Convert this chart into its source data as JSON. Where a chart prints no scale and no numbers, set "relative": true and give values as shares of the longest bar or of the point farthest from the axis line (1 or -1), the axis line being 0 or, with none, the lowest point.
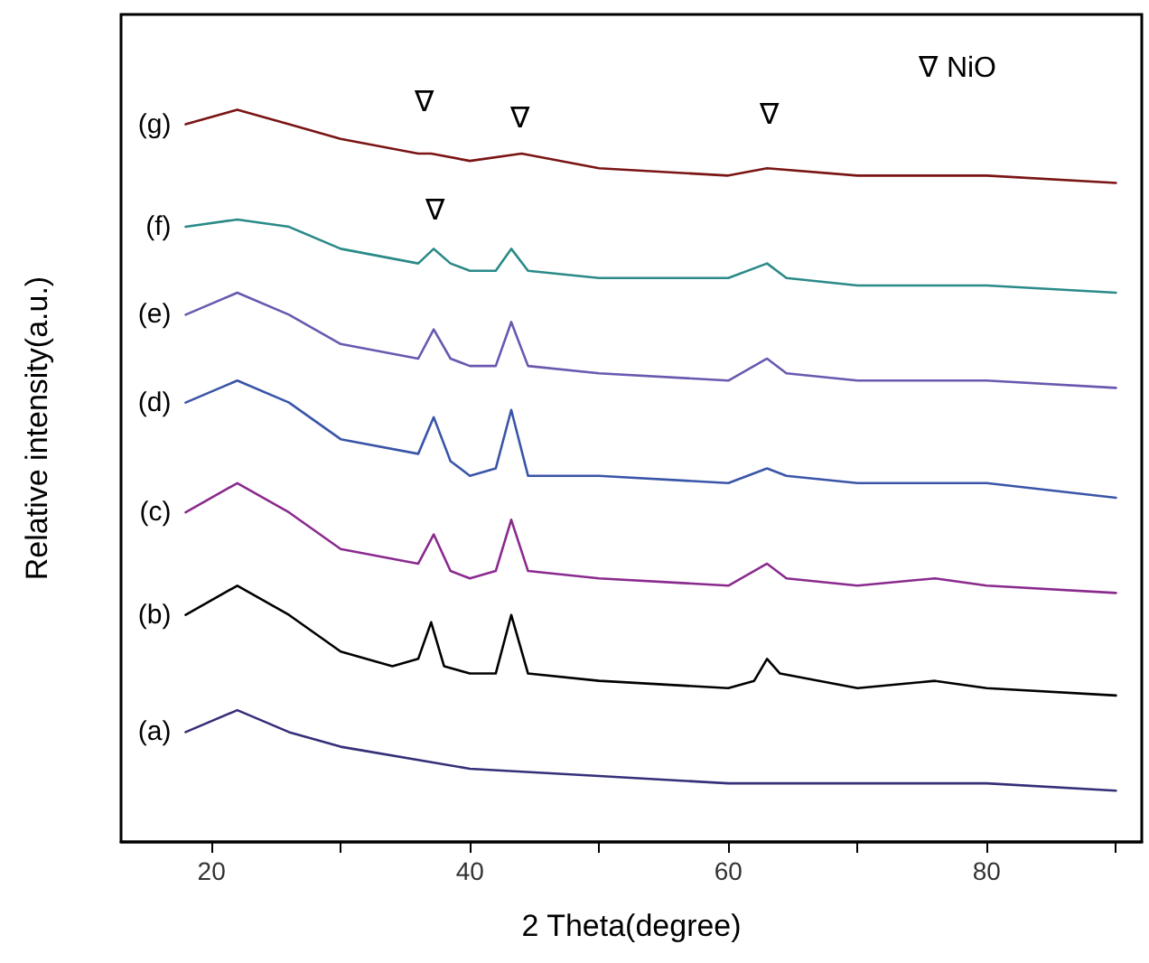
{
  "chart_data": {
    "type": "line",
    "relative": true,
    "xlabel": "2 Theta(degree)",
    "ylabel": "Relative intensity(a.u.)",
    "xlim": [
      13,
      92
    ],
    "xticks": [
      20,
      {
        "value": 30,
        "label": null
      },
      40,
      {
        "value": 50,
        "label": null
      },
      60,
      {
        "value": 70,
        "label": null
      },
      80,
      {
        "value": 90,
        "label": null
      }
    ],
    "tick_labels": "x",
    "grid": false,
    "legend": false,
    "marker": "none",
    "line_style": "solid",
    "annotations": [
      "∇ NiO",
      "∇",
      "∇",
      "∇",
      "∇"
    ],
    "series": [
      {
        "name": "(a)",
        "color": "#352f78",
        "x": [
          18,
          22,
          26,
          30,
          40,
          50,
          60,
          70,
          80,
          90
        ],
        "values": [
          0.15,
          0.18,
          0.15,
          0.13,
          0.1,
          0.09,
          0.08,
          0.08,
          0.08,
          0.07
        ]
      },
      {
        "name": "(b)",
        "color": "#000000",
        "x": [
          18,
          22,
          26,
          30,
          34,
          36,
          37,
          38,
          40,
          42,
          43.2,
          44.5,
          50,
          60,
          62,
          63,
          64,
          70,
          76,
          80,
          90
        ],
        "values": [
          0.31,
          0.35,
          0.31,
          0.26,
          0.24,
          0.25,
          0.3,
          0.24,
          0.23,
          0.23,
          0.31,
          0.23,
          0.22,
          0.21,
          0.22,
          0.25,
          0.23,
          0.21,
          0.22,
          0.21,
          0.2
        ]
      },
      {
        "name": "(c)",
        "color": "#8a2a8e",
        "x": [
          18,
          22,
          26,
          30,
          36,
          37.2,
          38.5,
          40,
          42,
          43.2,
          44.5,
          50,
          60,
          63,
          64.5,
          70,
          76,
          80,
          90
        ],
        "values": [
          0.45,
          0.49,
          0.45,
          0.4,
          0.38,
          0.42,
          0.37,
          0.36,
          0.37,
          0.44,
          0.37,
          0.36,
          0.35,
          0.38,
          0.36,
          0.35,
          0.36,
          0.35,
          0.34
        ]
      },
      {
        "name": "(d)",
        "color": "#3a55a8",
        "x": [
          18,
          22,
          26,
          30,
          36,
          37.2,
          38.5,
          40,
          42,
          43.2,
          44.5,
          50,
          60,
          63,
          64.5,
          70,
          80,
          90
        ],
        "values": [
          0.6,
          0.63,
          0.6,
          0.55,
          0.53,
          0.58,
          0.52,
          0.5,
          0.51,
          0.59,
          0.5,
          0.5,
          0.49,
          0.51,
          0.5,
          0.49,
          0.49,
          0.47
        ]
      },
      {
        "name": "(e)",
        "color": "#6a58b0",
        "x": [
          18,
          22,
          26,
          30,
          36,
          37.2,
          38.5,
          40,
          42,
          43.2,
          44.5,
          50,
          60,
          63,
          64.5,
          70,
          80,
          90
        ],
        "values": [
          0.72,
          0.75,
          0.72,
          0.68,
          0.66,
          0.7,
          0.66,
          0.65,
          0.65,
          0.71,
          0.65,
          0.64,
          0.63,
          0.66,
          0.64,
          0.63,
          0.63,
          0.62
        ]
      },
      {
        "name": "(f)",
        "color": "#2a8a88",
        "x": [
          18,
          22,
          26,
          30,
          36,
          37.2,
          38.5,
          40,
          42,
          43.2,
          44.5,
          50,
          60,
          63,
          64.5,
          70,
          80,
          90
        ],
        "values": [
          0.84,
          0.85,
          0.84,
          0.81,
          0.79,
          0.81,
          0.79,
          0.78,
          0.78,
          0.81,
          0.78,
          0.77,
          0.77,
          0.79,
          0.77,
          0.76,
          0.76,
          0.75
        ]
      },
      {
        "name": "(g)",
        "color": "#7a1414",
        "x": [
          18,
          22,
          26,
          30,
          36,
          37,
          40,
          44,
          50,
          60,
          63,
          70,
          80,
          90
        ],
        "values": [
          0.98,
          1,
          0.98,
          0.96,
          0.94,
          0.94,
          0.93,
          0.94,
          0.92,
          0.91,
          0.92,
          0.91,
          0.91,
          0.9
        ]
      }
    ]
  }
}
